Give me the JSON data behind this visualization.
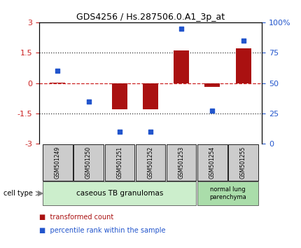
{
  "title": "GDS4256 / Hs.287506.0.A1_3p_at",
  "samples": [
    "GSM501249",
    "GSM501250",
    "GSM501251",
    "GSM501252",
    "GSM501253",
    "GSM501254",
    "GSM501255"
  ],
  "transformed_count": [
    0.02,
    -0.02,
    -1.3,
    -1.28,
    1.62,
    -0.18,
    1.72
  ],
  "percentile_rank": [
    60,
    35,
    10,
    10,
    95,
    27,
    85
  ],
  "ylim_left": [
    -3,
    3
  ],
  "ylim_right": [
    0,
    100
  ],
  "yticks_left": [
    -3,
    -1.5,
    0,
    1.5,
    3
  ],
  "yticks_right": [
    0,
    25,
    50,
    75,
    100
  ],
  "ytick_labels_right": [
    "0",
    "25",
    "50",
    "75",
    "100%"
  ],
  "bar_color": "#aa1111",
  "dot_color": "#2255cc",
  "hline_color": "#cc2222",
  "dotted_color": "#333333",
  "group1_samples": [
    0,
    1,
    2,
    3,
    4
  ],
  "group2_samples": [
    5,
    6
  ],
  "group1_label": "caseous TB granulomas",
  "group2_label": "normal lung\nparenchyma",
  "group1_color": "#cceecc",
  "group2_color": "#aaddaa",
  "sample_box_color": "#cccccc",
  "legend_red_label": "transformed count",
  "legend_blue_label": "percentile rank within the sample",
  "cell_type_label": "cell type"
}
